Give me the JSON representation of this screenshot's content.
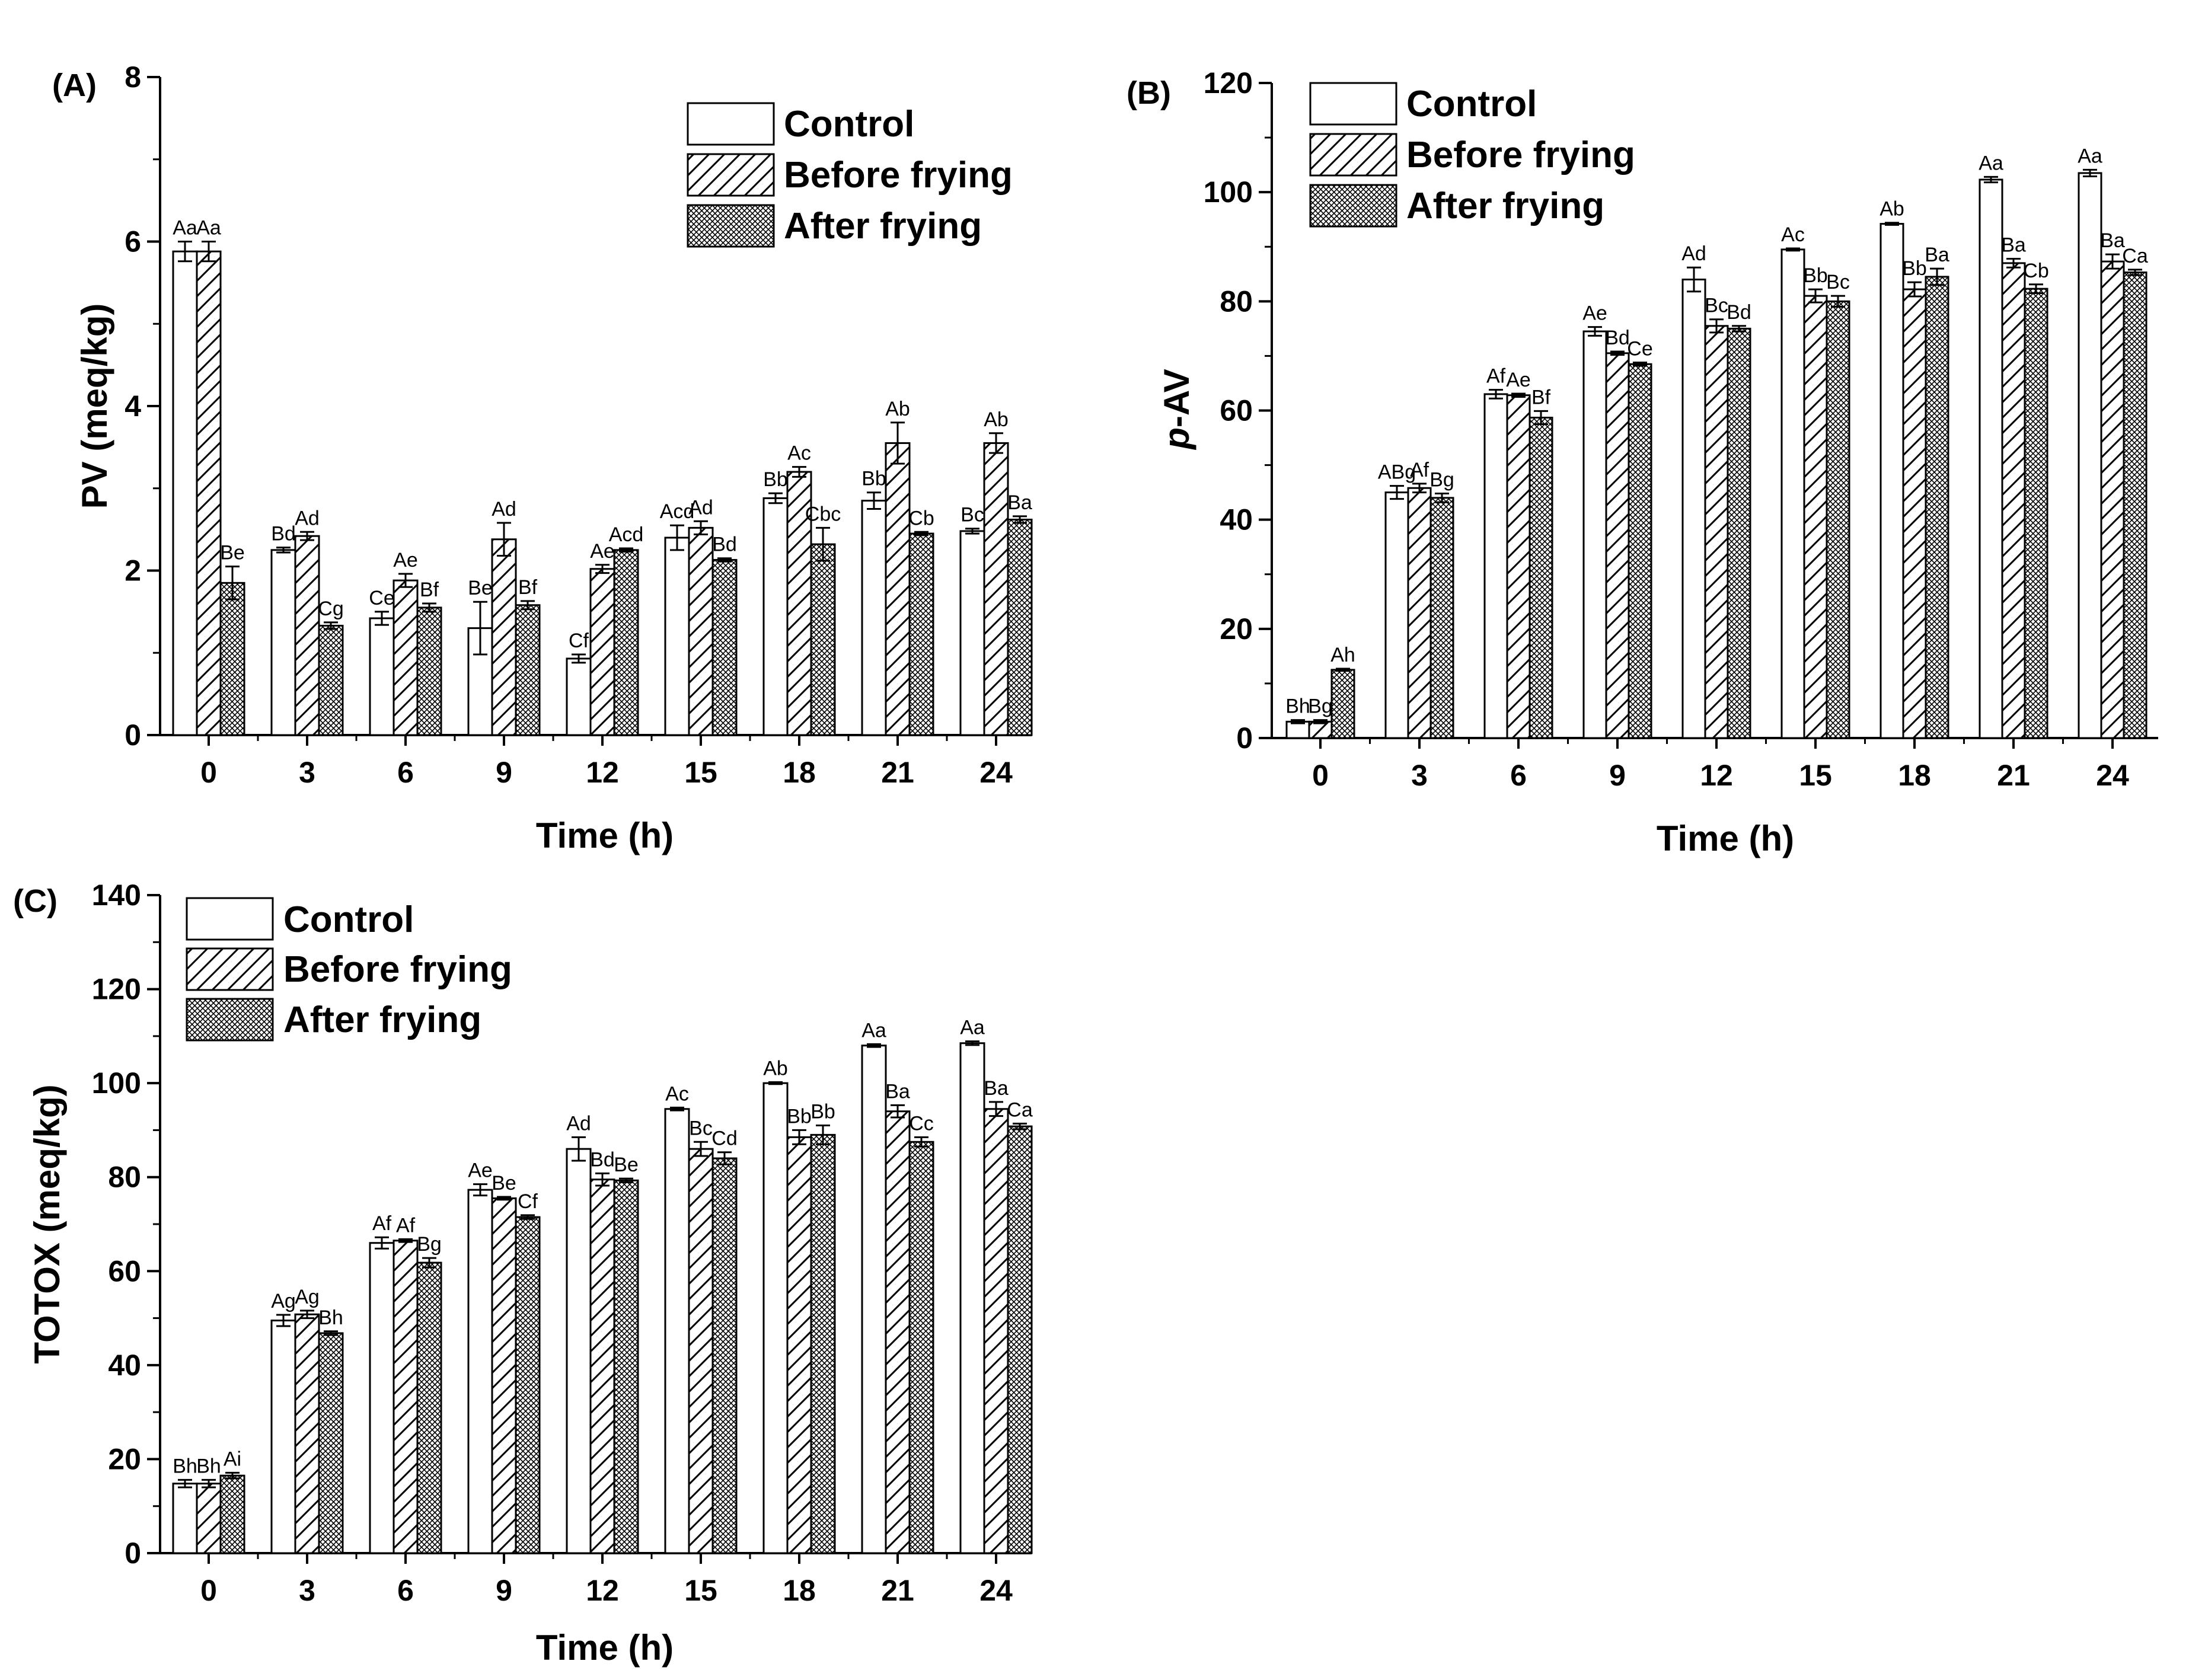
{
  "chart_data": [
    {
      "panel": "(A)",
      "type": "bar",
      "xlabel": "Time (h)",
      "ylabel": "PV (meq/kg)",
      "ylabel_italic_prefix": "",
      "categories": [
        "0",
        "3",
        "6",
        "9",
        "12",
        "15",
        "18",
        "21",
        "24"
      ],
      "ylim": [
        0,
        8
      ],
      "yticks": [
        "0",
        "2",
        "4",
        "6",
        "8"
      ],
      "legend_position": "top-right",
      "series": [
        {
          "name": "Control",
          "pattern": "none",
          "values": [
            5.88,
            2.25,
            1.42,
            1.3,
            0.93,
            2.4,
            2.88,
            2.85,
            2.48
          ],
          "errors": [
            0.12,
            0.03,
            0.08,
            0.32,
            0.05,
            0.15,
            0.06,
            0.1,
            0.03
          ],
          "labels": [
            "Aa",
            "Bd",
            "Ce",
            "Be",
            "Cf",
            "Acd",
            "Bb",
            "Bb",
            "Bc"
          ]
        },
        {
          "name": "Before frying",
          "pattern": "hatch",
          "values": [
            5.88,
            2.42,
            1.88,
            2.38,
            2.02,
            2.52,
            3.2,
            3.55,
            3.55
          ],
          "errors": [
            0.12,
            0.05,
            0.08,
            0.2,
            0.05,
            0.08,
            0.06,
            0.25,
            0.12
          ],
          "labels": [
            "Aa",
            "Ad",
            "Ae",
            "Ad",
            "Ae",
            "Ad",
            "Ac",
            "Ab",
            "Ab"
          ]
        },
        {
          "name": "After frying",
          "pattern": "cross",
          "values": [
            1.85,
            1.33,
            1.55,
            1.58,
            2.25,
            2.13,
            2.32,
            2.45,
            2.62
          ],
          "errors": [
            0.2,
            0.04,
            0.05,
            0.05,
            0.02,
            0.02,
            0.2,
            0.02,
            0.04
          ],
          "labels": [
            "Be",
            "Cg",
            "Bf",
            "Bf",
            "Acd",
            "Bd",
            "Cbc",
            "Cb",
            "Ba"
          ]
        }
      ]
    },
    {
      "panel": "(B)",
      "type": "bar",
      "xlabel": "Time (h)",
      "ylabel": "-AV",
      "ylabel_italic_prefix": "p",
      "categories": [
        "0",
        "3",
        "6",
        "9",
        "12",
        "15",
        "18",
        "21",
        "24"
      ],
      "ylim": [
        0,
        120
      ],
      "yticks": [
        "0",
        "20",
        "40",
        "60",
        "80",
        "100",
        "120"
      ],
      "legend_position": "top-left",
      "series": [
        {
          "name": "Control",
          "pattern": "none",
          "values": [
            3,
            45,
            63,
            74.5,
            84,
            89.5,
            94.2,
            102.3,
            103.5
          ],
          "errors": [
            0.3,
            1.2,
            0.8,
            0.8,
            2.2,
            0.2,
            0.2,
            0.5,
            0.6
          ],
          "labels": [
            "Bh",
            "ABg",
            "Af",
            "Ae",
            "Ad",
            "Ac",
            "Ab",
            "Aa",
            "Aa"
          ]
        },
        {
          "name": "Before frying",
          "pattern": "hatch",
          "values": [
            3,
            45.8,
            62.8,
            70.5,
            75.5,
            81,
            82.2,
            87,
            87.3
          ],
          "errors": [
            0.3,
            0.8,
            0.3,
            0.3,
            1.2,
            1.2,
            1.3,
            0.8,
            1.3
          ],
          "labels": [
            "Bg",
            "Af",
            "Ae",
            "Bd",
            "Bc",
            "Bb",
            "Bb",
            "Ba",
            "Ba"
          ]
        },
        {
          "name": "After frying",
          "pattern": "cross",
          "values": [
            12.5,
            44,
            58.7,
            68.5,
            75,
            80,
            84.5,
            82.3,
            85.3
          ],
          "errors": [
            0.2,
            0.8,
            1.2,
            0.3,
            0.5,
            1,
            1.5,
            0.8,
            0.5
          ],
          "labels": [
            "Ah",
            "Bg",
            "Bf",
            "Ce",
            "Bd",
            "Bc",
            "Ba",
            "Cb",
            "Ca"
          ]
        }
      ]
    },
    {
      "panel": "(C)",
      "type": "bar",
      "xlabel": "Time (h)",
      "ylabel": "TOTOX (meq/kg)",
      "ylabel_italic_prefix": "",
      "categories": [
        "0",
        "3",
        "6",
        "9",
        "12",
        "15",
        "18",
        "21",
        "24"
      ],
      "ylim": [
        0,
        140
      ],
      "yticks": [
        "0",
        "20",
        "40",
        "60",
        "80",
        "100",
        "120",
        "140"
      ],
      "legend_position": "top-left",
      "series": [
        {
          "name": "Control",
          "pattern": "none",
          "values": [
            14.8,
            49.5,
            66,
            77.3,
            86,
            94.5,
            100,
            108,
            108.5
          ],
          "errors": [
            0.8,
            1.2,
            1.2,
            1.2,
            2.5,
            0.3,
            0.2,
            0.3,
            0.4
          ],
          "labels": [
            "Bh",
            "Ag",
            "Af",
            "Ae",
            "Ad",
            "Ac",
            "Ab",
            "Aa",
            "Aa"
          ]
        },
        {
          "name": "Before frying",
          "pattern": "hatch",
          "values": [
            14.8,
            50.8,
            66.5,
            75.5,
            79.5,
            86,
            88.5,
            94,
            94.5
          ],
          "errors": [
            0.8,
            0.8,
            0.3,
            0.3,
            1.3,
            1.5,
            1.5,
            1.3,
            1.5
          ],
          "labels": [
            "Bh",
            "Ag",
            "Af",
            "Be",
            "Bd",
            "Bc",
            "Bb",
            "Ba",
            "Ba"
          ]
        },
        {
          "name": "After frying",
          "pattern": "cross",
          "values": [
            16.5,
            46.8,
            61.8,
            71.5,
            79.3,
            84,
            89,
            87.5,
            90.8
          ],
          "errors": [
            0.6,
            0.4,
            1,
            0.4,
            0.4,
            1.3,
            2,
            1,
            0.6
          ],
          "labels": [
            "Ai",
            "Bh",
            "Bg",
            "Cf",
            "Be",
            "Cd",
            "Bb",
            "Cc",
            "Ca"
          ]
        }
      ]
    }
  ]
}
